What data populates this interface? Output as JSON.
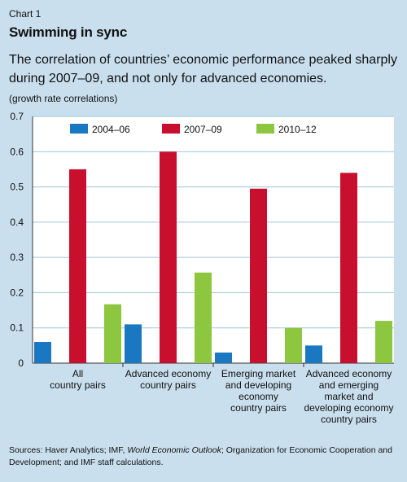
{
  "chart_label": "Chart 1",
  "chart_data": {
    "type": "bar",
    "title": "Swimming in sync",
    "subtitle": "The correlation of countries’ economic performance peaked sharply during 2007–09, and not only for advanced economies.",
    "ylabel": "(growth rate correlations)",
    "xlabel": "",
    "ylim": [
      0,
      0.7
    ],
    "yticks": [
      "0",
      "0.1",
      "0.2",
      "0.3",
      "0.4",
      "0.5",
      "0.6",
      "0.7"
    ],
    "yticks_values": [
      0,
      0.1,
      0.2,
      0.3,
      0.4,
      0.5,
      0.6,
      0.7
    ],
    "grid": true,
    "legend_position": "top",
    "categories": [
      [
        "All",
        "country pairs"
      ],
      [
        "Advanced economy",
        "country pairs"
      ],
      [
        "Emerging market",
        "and developing",
        "economy",
        "country pairs"
      ],
      [
        "Advanced economy",
        "and emerging",
        "market and",
        "developing economy",
        "country pairs"
      ]
    ],
    "series": [
      {
        "name": "2004–06",
        "color": "#1a78c2",
        "values": [
          0.06,
          0.11,
          0.03,
          0.05
        ]
      },
      {
        "name": "2007–09",
        "color": "#c8102e",
        "values": [
          0.55,
          0.6,
          0.495,
          0.54
        ]
      },
      {
        "name": "2010–12",
        "color": "#8dc63f",
        "values": [
          0.167,
          0.257,
          0.1,
          0.12
        ]
      }
    ]
  },
  "sources": {
    "prefix": "Sources: Haver Analytics; IMF, ",
    "italic": "World Economic Outlook",
    "suffix": "; Organization for Economic Cooperation and Development; and IMF staff calculations."
  }
}
